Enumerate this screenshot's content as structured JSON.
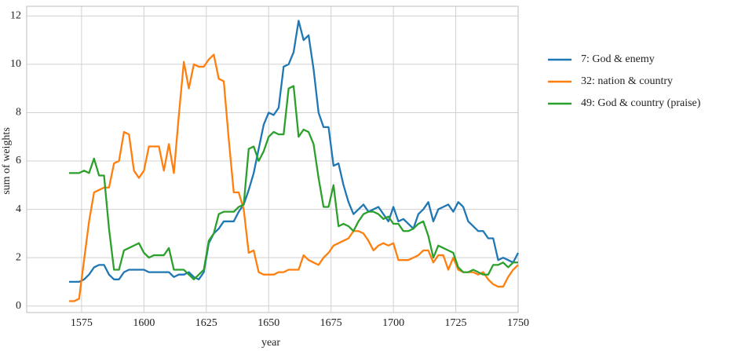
{
  "chart_data": {
    "type": "line",
    "xlabel": "year",
    "ylabel": "sum of weights",
    "x": [
      1570,
      1572,
      1574,
      1576,
      1578,
      1580,
      1582,
      1584,
      1586,
      1588,
      1590,
      1592,
      1594,
      1596,
      1598,
      1600,
      1602,
      1604,
      1606,
      1608,
      1610,
      1612,
      1614,
      1616,
      1618,
      1620,
      1622,
      1624,
      1626,
      1628,
      1630,
      1632,
      1634,
      1636,
      1638,
      1640,
      1642,
      1644,
      1646,
      1648,
      1650,
      1652,
      1654,
      1656,
      1658,
      1660,
      1662,
      1664,
      1666,
      1668,
      1670,
      1672,
      1674,
      1676,
      1678,
      1680,
      1682,
      1684,
      1686,
      1688,
      1690,
      1692,
      1694,
      1696,
      1698,
      1700,
      1702,
      1704,
      1706,
      1708,
      1710,
      1712,
      1714,
      1716,
      1718,
      1720,
      1722,
      1724,
      1726,
      1728,
      1730,
      1732,
      1734,
      1736,
      1738,
      1740,
      1742,
      1744,
      1746,
      1748,
      1750
    ],
    "series": [
      {
        "name": "7: God & enemy",
        "color": "#1f77b4",
        "values": [
          1.0,
          1.0,
          1.0,
          1.1,
          1.3,
          1.6,
          1.7,
          1.7,
          1.3,
          1.1,
          1.1,
          1.4,
          1.5,
          1.5,
          1.5,
          1.5,
          1.4,
          1.4,
          1.4,
          1.4,
          1.4,
          1.2,
          1.3,
          1.3,
          1.4,
          1.2,
          1.1,
          1.4,
          2.6,
          3.0,
          3.2,
          3.5,
          3.5,
          3.5,
          3.9,
          4.2,
          4.8,
          5.5,
          6.5,
          7.5,
          8.0,
          7.9,
          8.2,
          9.9,
          10.0,
          10.5,
          11.8,
          11.0,
          11.2,
          9.8,
          8.0,
          7.4,
          7.4,
          5.8,
          5.9,
          5.0,
          4.3,
          3.8,
          4.0,
          4.2,
          3.9,
          4.0,
          4.1,
          3.8,
          3.5,
          4.1,
          3.5,
          3.6,
          3.4,
          3.2,
          3.8,
          4.0,
          4.3,
          3.5,
          4.0,
          4.1,
          4.2,
          3.9,
          4.3,
          4.1,
          3.5,
          3.3,
          3.1,
          3.1,
          2.8,
          2.8,
          1.9,
          2.0,
          1.9,
          1.8,
          2.2
        ]
      },
      {
        "name": "32: nation & country",
        "color": "#ff7f0e",
        "values": [
          0.2,
          0.2,
          0.3,
          1.9,
          3.5,
          4.7,
          4.8,
          4.9,
          4.9,
          5.9,
          6.0,
          7.2,
          7.1,
          5.6,
          5.3,
          5.6,
          6.6,
          6.6,
          6.6,
          5.6,
          6.7,
          5.5,
          7.9,
          10.1,
          9.0,
          10.0,
          9.9,
          9.9,
          10.2,
          10.4,
          9.4,
          9.3,
          6.9,
          4.7,
          4.7,
          4.0,
          2.2,
          2.3,
          1.4,
          1.3,
          1.3,
          1.3,
          1.4,
          1.4,
          1.5,
          1.5,
          1.5,
          2.1,
          1.9,
          1.8,
          1.7,
          2.0,
          2.2,
          2.5,
          2.6,
          2.7,
          2.8,
          3.1,
          3.1,
          3.0,
          2.7,
          2.3,
          2.5,
          2.6,
          2.5,
          2.6,
          1.9,
          1.9,
          1.9,
          2.0,
          2.1,
          2.3,
          2.3,
          1.8,
          2.1,
          2.1,
          1.5,
          2.0,
          1.5,
          1.4,
          1.4,
          1.4,
          1.3,
          1.4,
          1.1,
          0.9,
          0.8,
          0.8,
          1.2,
          1.5,
          1.7
        ]
      },
      {
        "name": "49: God & country (praise)",
        "color": "#2ca02c",
        "values": [
          5.5,
          5.5,
          5.5,
          5.6,
          5.5,
          6.1,
          5.4,
          5.4,
          3.2,
          1.5,
          1.5,
          2.3,
          2.4,
          2.5,
          2.6,
          2.2,
          2.0,
          2.1,
          2.1,
          2.1,
          2.4,
          1.5,
          1.5,
          1.5,
          1.3,
          1.1,
          1.3,
          1.5,
          2.7,
          3.0,
          3.8,
          3.9,
          3.9,
          3.9,
          4.1,
          4.2,
          6.5,
          6.6,
          6.0,
          6.4,
          7.0,
          7.2,
          7.1,
          7.1,
          9.0,
          9.1,
          7.0,
          7.3,
          7.2,
          6.7,
          5.3,
          4.1,
          4.1,
          5.0,
          3.3,
          3.4,
          3.3,
          3.1,
          3.5,
          3.8,
          3.9,
          3.9,
          3.8,
          3.6,
          3.7,
          3.4,
          3.4,
          3.1,
          3.1,
          3.2,
          3.4,
          3.5,
          2.9,
          2.0,
          2.5,
          2.4,
          2.3,
          2.2,
          1.6,
          1.4,
          1.4,
          1.5,
          1.4,
          1.3,
          1.3,
          1.7,
          1.7,
          1.8,
          1.6,
          1.8,
          1.8
        ]
      }
    ],
    "xlim": [
      1553,
      1750
    ],
    "ylim": [
      -0.27,
      12.4
    ],
    "xticks": [
      1575,
      1600,
      1625,
      1650,
      1675,
      1700,
      1725,
      1750
    ],
    "yticks": [
      0,
      2,
      4,
      6,
      8,
      10,
      12
    ],
    "grid": true,
    "legend": "outside right"
  }
}
